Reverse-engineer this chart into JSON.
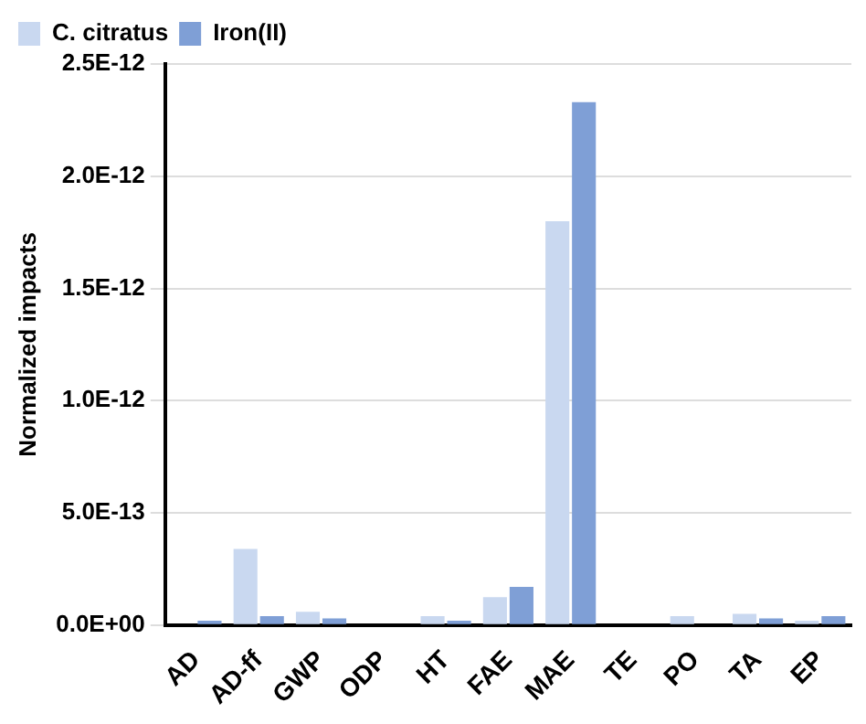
{
  "chart_data": {
    "type": "bar",
    "ylabel": "Normalized impacts",
    "categories": [
      "AD",
      "AD-ff",
      "GWP",
      "ODP",
      "HT",
      "FAE",
      "MAE",
      "TE",
      "PO",
      "TA",
      "EP"
    ],
    "series": [
      {
        "name": "C. citratus",
        "color": "#c9d8f0",
        "values": [
          0.0,
          3.4e-13,
          6e-14,
          0.0,
          4e-14,
          1.25e-13,
          1.8e-12,
          0.0,
          4e-14,
          5e-14,
          2e-14
        ]
      },
      {
        "name": "Iron(II)",
        "color": "#7f9fd6",
        "values": [
          2e-14,
          4e-14,
          3e-14,
          0.0,
          2e-14,
          1.7e-13,
          2.33e-12,
          0.0,
          0.0,
          3e-14,
          4e-14
        ]
      }
    ],
    "ylim": [
      0,
      2.5e-12
    ],
    "yticks": [
      {
        "value": 0,
        "label": "0.0E+00"
      },
      {
        "value": 5e-13,
        "label": "5.0E-13"
      },
      {
        "value": 1e-12,
        "label": "1.0E-12"
      },
      {
        "value": 1.5e-12,
        "label": "1.5E-12"
      },
      {
        "value": 2e-12,
        "label": "2.0E-12"
      },
      {
        "value": 2.5e-12,
        "label": "2.5E-12"
      }
    ],
    "grid": "y",
    "legend": "top left"
  }
}
